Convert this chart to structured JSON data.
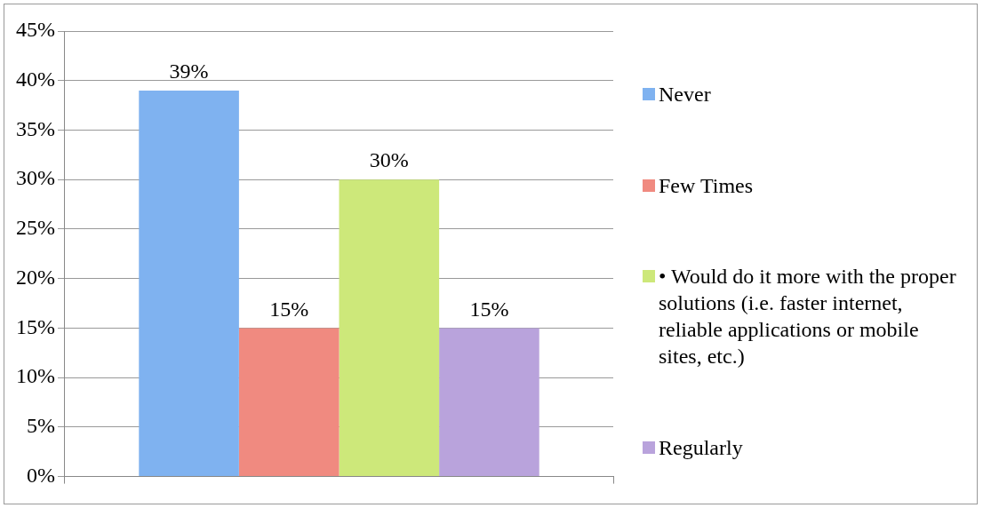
{
  "chart_data": {
    "type": "bar",
    "categories": [
      null
    ],
    "series": [
      {
        "name": "Never",
        "color": "#7fb2f0",
        "values": [
          39
        ],
        "value_labels": [
          "39%"
        ]
      },
      {
        "name": "Few Times",
        "color": "#f08a80",
        "values": [
          15
        ],
        "value_labels": [
          "15%"
        ]
      },
      {
        "name": "• Would do it more with the proper solutions (i.e. faster internet, reliable applications or mobile sites, etc.)",
        "color": "#cde87a",
        "values": [
          30
        ],
        "value_labels": [
          "30%"
        ]
      },
      {
        "name": "Regularly",
        "color": "#b9a3dc",
        "values": [
          15
        ],
        "value_labels": [
          "15%"
        ]
      }
    ],
    "ylim": [
      0,
      45
    ],
    "yticks": [
      {
        "value": 0,
        "label": "0%"
      },
      {
        "value": 5,
        "label": "5%"
      },
      {
        "value": 10,
        "label": "10%"
      },
      {
        "value": 15,
        "label": "15%"
      },
      {
        "value": 20,
        "label": "20%"
      },
      {
        "value": 25,
        "label": "25%"
      },
      {
        "value": 30,
        "label": "30%"
      },
      {
        "value": 35,
        "label": "35%"
      },
      {
        "value": 40,
        "label": "40%"
      },
      {
        "value": 45,
        "label": "45%"
      }
    ],
    "grid": "y",
    "legend": "right"
  }
}
